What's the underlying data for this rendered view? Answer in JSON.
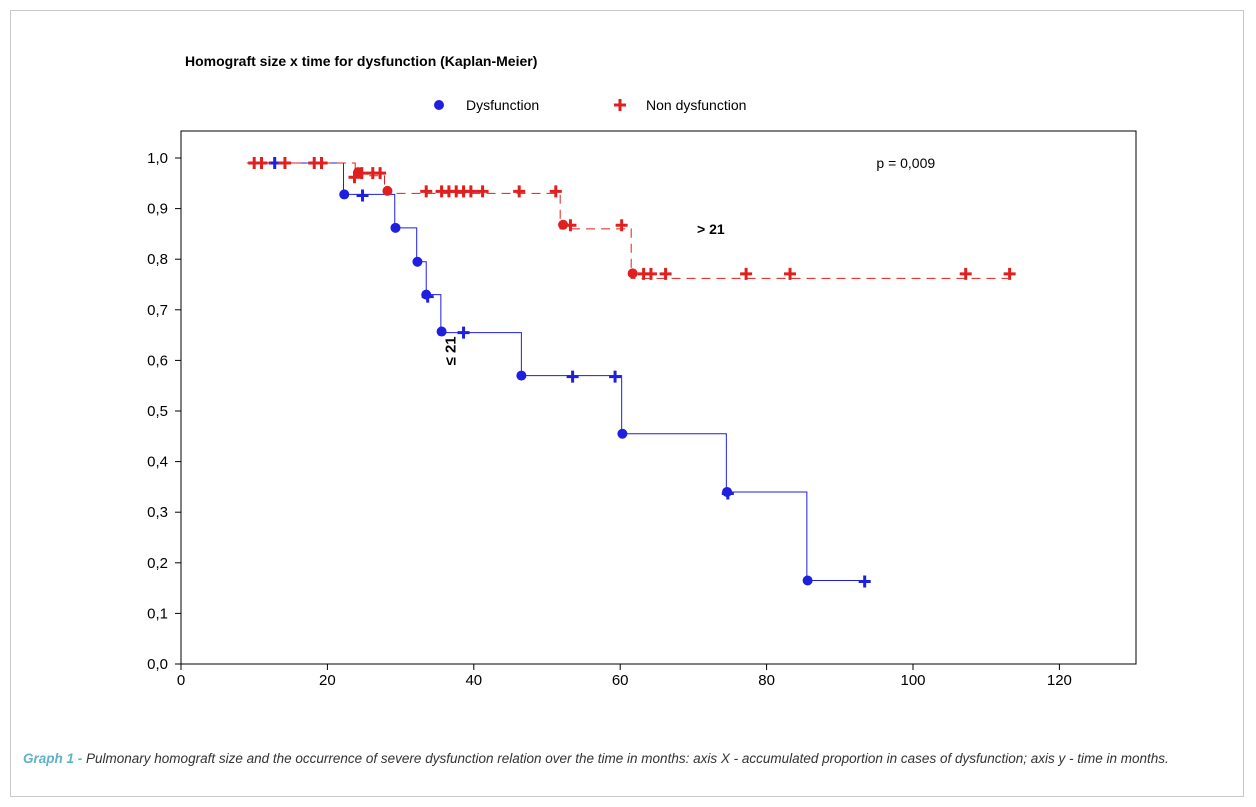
{
  "chart_data": {
    "type": "line",
    "title": "Homograft size x time for dysfunction  (Kaplan-Meier)",
    "xlabel": "",
    "ylabel": "",
    "xlim": [
      0,
      130
    ],
    "ylim": [
      0,
      1.05
    ],
    "x_ticks": [
      0,
      20,
      40,
      60,
      80,
      100,
      120
    ],
    "y_ticks": [
      0.0,
      0.1,
      0.2,
      0.3,
      0.4,
      0.5,
      0.6,
      0.7,
      0.8,
      0.9,
      1.0
    ],
    "x_tick_labels": [
      "0",
      "20",
      "40",
      "60",
      "80",
      "100",
      "120"
    ],
    "y_tick_labels": [
      "0,0",
      "0,1",
      "0,2",
      "0,3",
      "0,4",
      "0,5",
      "0,6",
      "0,7",
      "0,8",
      "0,9",
      "1,0"
    ],
    "grid": false,
    "legend_position": "top-center",
    "annotations": [
      {
        "text": "p = 0,009",
        "x": 95,
        "y": 0.98
      },
      {
        "text": "> 21",
        "x": 70.5,
        "y": 0.85
      },
      {
        "text": "≤ 21",
        "x": 37.5,
        "y": 0.59
      }
    ],
    "series": [
      {
        "name": "Dysfunction",
        "marker": "circle",
        "line_style": "solid",
        "color": "#1f1fe0",
        "step_x": [
          9,
          22.2,
          22.2,
          29.2,
          29.2,
          32.2,
          32.2,
          33.5,
          33.5,
          35.5,
          35.5,
          46.5,
          46.5,
          60.2,
          60.2,
          74.5,
          74.5,
          85.5,
          85.5,
          93.5
        ],
        "step_y": [
          0.99,
          0.99,
          0.928,
          0.928,
          0.862,
          0.862,
          0.795,
          0.795,
          0.73,
          0.73,
          0.655,
          0.655,
          0.57,
          0.57,
          0.455,
          0.455,
          0.34,
          0.34,
          0.165,
          0.165
        ],
        "events_x": [
          22.3,
          29.3,
          32.3,
          33.5,
          35.6,
          46.5,
          60.3,
          74.6,
          85.6
        ],
        "events_y": [
          0.928,
          0.862,
          0.795,
          0.73,
          0.657,
          0.57,
          0.455,
          0.34,
          0.165
        ],
        "censored_x": [
          12.8,
          19.2,
          24.8,
          33.7,
          38.6,
          53.5,
          59.3,
          74.7,
          93.4
        ],
        "censored_y": [
          0.99,
          0.99,
          0.926,
          0.726,
          0.655,
          0.568,
          0.568,
          0.337,
          0.163
        ]
      },
      {
        "name": "Non dysfunction",
        "marker": "plus",
        "line_style": "dashed",
        "color": "#e01f1f",
        "step_x": [
          9,
          23.8,
          23.8,
          27.8,
          27.8,
          51.8,
          51.8,
          61.5,
          61.5,
          113
        ],
        "step_y": [
          0.99,
          0.99,
          0.965,
          0.965,
          0.93,
          0.93,
          0.86,
          0.86,
          0.762,
          0.762
        ],
        "events_x": [
          24.2,
          28.2,
          52.2,
          61.7
        ],
        "events_y": [
          0.972,
          0.935,
          0.868,
          0.772
        ],
        "censored_x": [
          10,
          11,
          14.2,
          18.2,
          19.2,
          23.7,
          24.7,
          26.2,
          27.2,
          33.5,
          35.6,
          36.6,
          37.6,
          38.6,
          39.6,
          41.2,
          46.2,
          51.2,
          53.2,
          60.2,
          63.2,
          64.2,
          66.2,
          77.2,
          83.2,
          107.2,
          113.2
        ],
        "censored_y": [
          0.99,
          0.99,
          0.99,
          0.99,
          0.99,
          0.962,
          0.97,
          0.97,
          0.97,
          0.934,
          0.934,
          0.934,
          0.934,
          0.934,
          0.934,
          0.934,
          0.934,
          0.934,
          0.867,
          0.867,
          0.771,
          0.771,
          0.771,
          0.771,
          0.771,
          0.771,
          0.771
        ]
      }
    ]
  },
  "caption": {
    "label": "Graph 1 - ",
    "text": "Pulmonary homograft size and the occurrence of severe dysfunction relation over the time in months: axis X - accumulated proportion in cases of dysfunction; axis y - time in months."
  }
}
